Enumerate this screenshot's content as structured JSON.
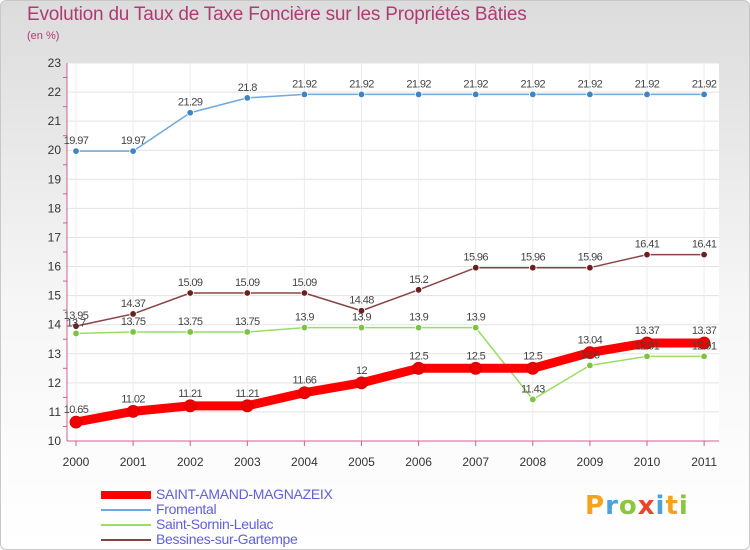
{
  "title": "Evolution du Taux de Taxe Foncière sur les Propriétés Bâties",
  "unit": "(en %)",
  "brand": {
    "text": "Proxiti",
    "colors": [
      "#f7a21b",
      "#4aa3df",
      "#8cc63e",
      "#e8452c",
      "#4aa3df",
      "#f7a21b",
      "#8cc63e"
    ]
  },
  "chart_data": {
    "type": "line",
    "x": [
      2000,
      2001,
      2002,
      2003,
      2004,
      2005,
      2006,
      2007,
      2008,
      2009,
      2010,
      2011
    ],
    "ylim": [
      10,
      23
    ],
    "yticks": [
      10,
      11,
      12,
      13,
      14,
      15,
      16,
      17,
      18,
      19,
      20,
      21,
      22,
      23
    ],
    "grid": true,
    "legend": "bottom-left",
    "series": [
      {
        "name": "SAINT-AMAND-MAGNAZEIX",
        "color": "#ff0000",
        "labels": [
          "10.65",
          "11.02",
          "11.21",
          "11.21",
          "11.66",
          "12",
          "12.5",
          "12.5",
          "12.5",
          "13.04",
          "13.37",
          "13.37"
        ],
        "values": [
          10.65,
          11.02,
          11.21,
          11.21,
          11.66,
          12,
          12.5,
          12.5,
          12.5,
          13.04,
          13.37,
          13.37
        ]
      },
      {
        "name": "Fromental",
        "color": "#6fa8dc",
        "labels": [
          "19.97",
          "19.97",
          "21.29",
          "21.8",
          "21.92",
          "21.92",
          "21.92",
          "21.92",
          "21.92",
          "21.92",
          "21.92",
          "21.92"
        ],
        "values": [
          19.97,
          19.97,
          21.29,
          21.8,
          21.92,
          21.92,
          21.92,
          21.92,
          21.92,
          21.92,
          21.92,
          21.92
        ]
      },
      {
        "name": "Saint-Sornin-Leulac",
        "color": "#99dd66",
        "labels": [
          "13.7",
          "13.75",
          "13.75",
          "13.75",
          "13.9",
          "13.9",
          "13.9",
          "13.9",
          "11.43",
          "12.6",
          "12.91",
          "12.91"
        ],
        "values": [
          13.7,
          13.75,
          13.75,
          13.75,
          13.9,
          13.9,
          13.9,
          13.9,
          11.43,
          12.6,
          12.91,
          12.91
        ]
      },
      {
        "name": "Bessines-sur-Gartempe",
        "color": "#884444",
        "labels": [
          "13.95",
          "14.37",
          "15.09",
          "15.09",
          "15.09",
          "14.48",
          "15.2",
          "15.96",
          "15.96",
          "15.96",
          "16.41",
          "16.41"
        ],
        "values": [
          13.95,
          14.37,
          15.09,
          15.09,
          15.09,
          14.48,
          15.2,
          15.96,
          15.96,
          15.96,
          16.41,
          16.41
        ]
      }
    ]
  }
}
